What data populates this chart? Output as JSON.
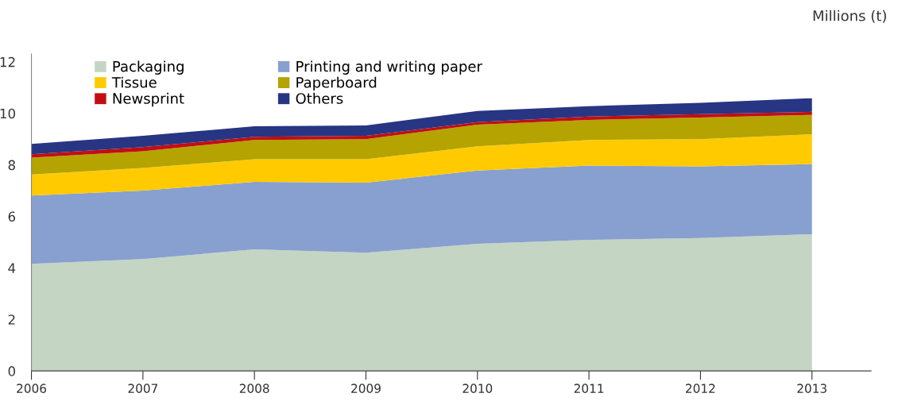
{
  "chart_data": {
    "type": "area",
    "stacked": true,
    "ylabel": "Millions (t)",
    "categories": [
      "2006",
      "2007",
      "2008",
      "2009",
      "2010",
      "2011",
      "2012",
      "2013"
    ],
    "series": [
      {
        "name": "Packaging",
        "color": "#c4d5c3",
        "values": [
          4.16,
          4.34,
          4.72,
          4.59,
          4.94,
          5.09,
          5.16,
          5.31
        ]
      },
      {
        "name": "Printing and writing paper",
        "color": "#88a0cf",
        "values": [
          2.65,
          2.66,
          2.62,
          2.72,
          2.84,
          2.88,
          2.78,
          2.72
        ]
      },
      {
        "name": "Tissue",
        "color": "#ffcb00",
        "values": [
          0.82,
          0.88,
          0.88,
          0.91,
          0.94,
          1.0,
          1.06,
          1.16
        ]
      },
      {
        "name": "Paperboard",
        "color": "#b4a300",
        "values": [
          0.65,
          0.65,
          0.75,
          0.78,
          0.84,
          0.78,
          0.84,
          0.75
        ]
      },
      {
        "name": "Newsprint",
        "color": "#c20e12",
        "values": [
          0.13,
          0.16,
          0.12,
          0.13,
          0.1,
          0.13,
          0.13,
          0.12
        ]
      },
      {
        "name": "Others",
        "color": "#283583",
        "values": [
          0.4,
          0.44,
          0.41,
          0.4,
          0.43,
          0.4,
          0.44,
          0.53
        ]
      }
    ],
    "ylim": [
      0,
      12.3
    ],
    "yticks": [
      0,
      2,
      4,
      6,
      8,
      10,
      12
    ],
    "grid": false,
    "legend": "top left"
  }
}
